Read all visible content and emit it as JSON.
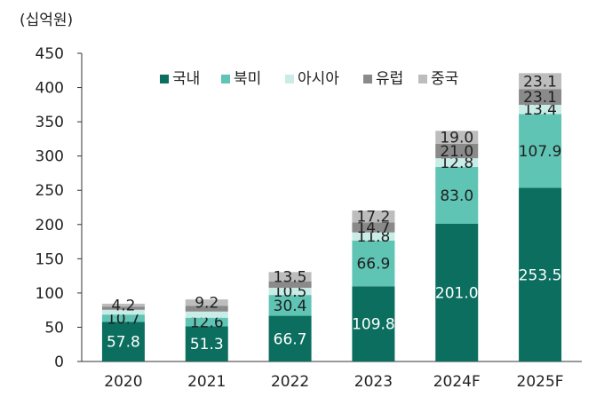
{
  "chart_data": {
    "type": "bar",
    "stacked": true,
    "unit_label": "(십억원)",
    "categories": [
      "2020",
      "2021",
      "2022",
      "2023",
      "2024F",
      "2025F"
    ],
    "series": [
      {
        "name": "국내",
        "color": "#0b6e5f",
        "values": [
          57.8,
          51.3,
          66.7,
          109.8,
          201.0,
          253.5
        ]
      },
      {
        "name": "북미",
        "color": "#5fc4b4",
        "values": [
          10.7,
          12.6,
          30.4,
          66.9,
          83.0,
          107.9
        ]
      },
      {
        "name": "아시아",
        "color": "#c9ece7",
        "values": [
          7.0,
          9.0,
          10.5,
          11.8,
          12.8,
          13.4
        ]
      },
      {
        "name": "유럽",
        "color": "#8a8a8a",
        "values": [
          4.7,
          8.5,
          9.5,
          14.7,
          21.0,
          23.1
        ]
      },
      {
        "name": "중국",
        "color": "#bdbdbd",
        "values": [
          4.2,
          9.2,
          13.5,
          17.2,
          19.0,
          23.1
        ]
      }
    ],
    "labels": [
      [
        "57.8",
        "51.3",
        "66.7",
        "109.8",
        "201.0",
        "253.5"
      ],
      [
        "10.7",
        "12.6",
        "30.4",
        "66.9",
        "83.0",
        "107.9"
      ],
      [
        "",
        "",
        "10.5",
        "11.8",
        "12.8",
        "13.4"
      ],
      [
        "",
        "",
        "",
        "14.7",
        "21.0",
        "23.1"
      ],
      [
        "4.2",
        "9.2",
        "13.5",
        "17.2",
        "19.0",
        "23.1"
      ]
    ],
    "ylim": [
      0,
      450
    ],
    "yticks": [
      0,
      50,
      100,
      150,
      200,
      250,
      300,
      350,
      400,
      450
    ],
    "legend_position": "top",
    "grid": false
  }
}
